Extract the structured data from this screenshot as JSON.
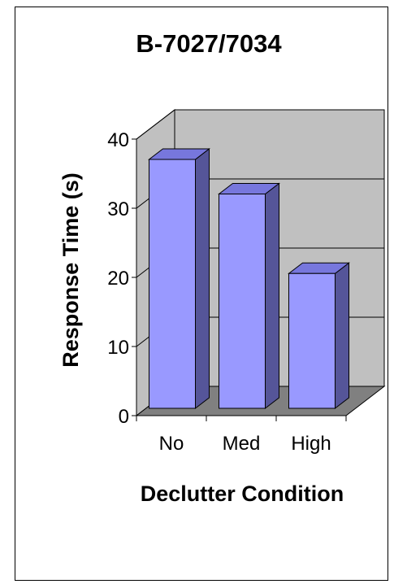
{
  "chart_data": {
    "type": "bar",
    "title": "B-7027/7034",
    "xlabel": "Declutter Condition",
    "ylabel": "Response Time (s)",
    "categories": [
      "No",
      "Med",
      "High"
    ],
    "values": [
      36,
      31,
      19.5
    ],
    "ylim": [
      0,
      40
    ],
    "yticks": [
      0,
      10,
      20,
      30,
      40
    ],
    "grid": true,
    "three_d": true,
    "colors": {
      "bar_front": "#9999ff",
      "bar_side": "#555599",
      "bar_top": "#7777dd",
      "wall": "#c0c0c0",
      "floor": "#808080"
    }
  }
}
